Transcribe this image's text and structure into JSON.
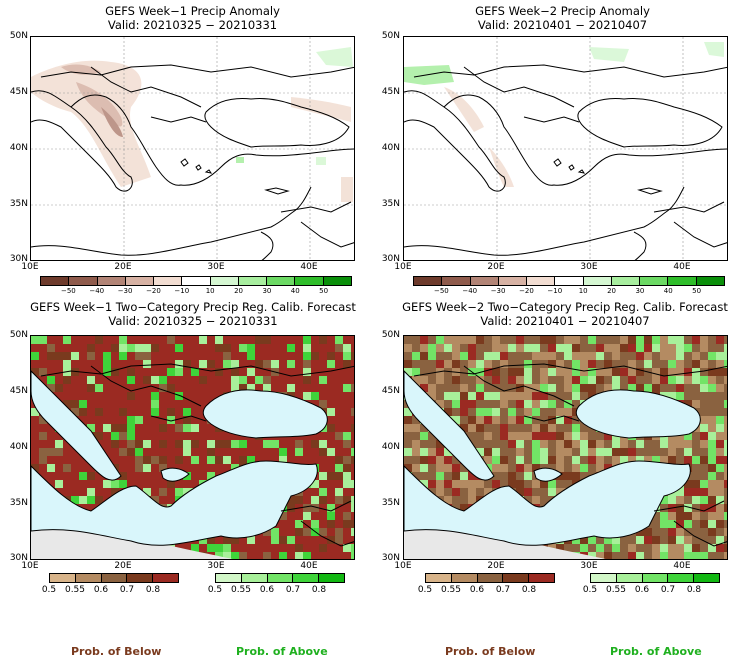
{
  "panels": {
    "p1": {
      "title": "GEFS Week−1 Precip Anomaly",
      "valid": "Valid: 20210325 − 20210331"
    },
    "p2": {
      "title": "GEFS Week−2 Precip Anomaly",
      "valid": "Valid: 20210401 − 20210407"
    },
    "p3": {
      "title": "GEFS Week−1 Two−Category Precip Reg. Calib. Forecast",
      "valid": "Valid: 20210325 − 20210331"
    },
    "p4": {
      "title": "GEFS Week−2 Two−Category Precip Reg. Calib. Forecast",
      "valid": "Valid: 20210401 − 20210407"
    }
  },
  "lat_labels": [
    "50N",
    "45N",
    "40N",
    "35N",
    "30N"
  ],
  "lon_labels": [
    "10E",
    "20E",
    "30E",
    "40E"
  ],
  "anomaly_ticks": [
    "−50",
    "−40",
    "−30",
    "−20",
    "−10",
    "10",
    "20",
    "30",
    "40",
    "50"
  ],
  "anomaly_colors": [
    "#6e3b2c",
    "#8f5b4c",
    "#b28476",
    "#d7b2a4",
    "#f2ddd2",
    "#ffffff",
    "#d5f7d2",
    "#a8ee9f",
    "#6cd964",
    "#2fbd2a",
    "#0a8f0a"
  ],
  "prob_ticks": [
    "0.5",
    "0.55",
    "0.6",
    "0.7",
    "0.8"
  ],
  "below_colors": [
    "#d8b48a",
    "#b48b62",
    "#8a6240",
    "#7a3a1e",
    "#9b2a22"
  ],
  "above_colors": [
    "#d2f7c8",
    "#a8f09a",
    "#72e466",
    "#3fd43a",
    "#12b812"
  ],
  "legend": {
    "below": "Prob. of Below",
    "above": "Prob. of Above"
  },
  "colors": {
    "below_text": "#7a3a1e",
    "above_text": "#1fb01f",
    "sea": "#d9f6fb",
    "nodata": "#e8e8e8"
  }
}
